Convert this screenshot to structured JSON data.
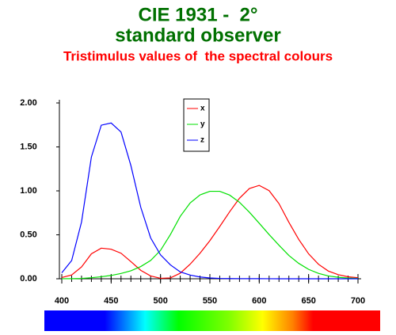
{
  "chart_data": {
    "type": "line",
    "title": [
      "CIE 1931 -  2°",
      "standard observer"
    ],
    "subtitle": "Tristimulus values of  the spectral colours",
    "x": [
      400,
      410,
      420,
      430,
      440,
      450,
      460,
      470,
      480,
      490,
      500,
      510,
      520,
      530,
      540,
      550,
      560,
      570,
      580,
      590,
      600,
      610,
      620,
      630,
      640,
      650,
      660,
      670,
      680,
      690,
      700
    ],
    "series": [
      {
        "name": "x",
        "color": "#ff0000",
        "values": [
          0.01431,
          0.04351,
          0.13438,
          0.2839,
          0.34828,
          0.3362,
          0.2908,
          0.19536,
          0.09564,
          0.03201,
          0.0049,
          0.0093,
          0.06327,
          0.1655,
          0.2904,
          0.43345,
          0.5945,
          0.7621,
          0.9163,
          1.0263,
          1.0622,
          1.0026,
          0.85445,
          0.6424,
          0.4479,
          0.2835,
          0.1649,
          0.0874,
          0.04677,
          0.0227,
          0.01136
        ]
      },
      {
        "name": "y",
        "color": "#00e000",
        "values": [
          0.0004,
          0.0012,
          0.004,
          0.0116,
          0.023,
          0.038,
          0.06,
          0.09098,
          0.13902,
          0.20802,
          0.323,
          0.503,
          0.71,
          0.862,
          0.954,
          0.99495,
          0.995,
          0.952,
          0.87,
          0.757,
          0.631,
          0.503,
          0.381,
          0.265,
          0.175,
          0.107,
          0.061,
          0.032,
          0.017,
          0.00821,
          0.0041
        ]
      },
      {
        "name": "z",
        "color": "#0000ff",
        "values": [
          0.06785,
          0.2074,
          0.6456,
          1.3856,
          1.74706,
          1.77211,
          1.6692,
          1.28764,
          0.81295,
          0.46518,
          0.272,
          0.1582,
          0.07825,
          0.04216,
          0.0203,
          0.00875,
          0.0039,
          0.0021,
          0.00165,
          0.0011,
          0.0008,
          0.00034,
          0.00019,
          5e-05,
          2e-05,
          0,
          0,
          0,
          0,
          0,
          0
        ]
      }
    ],
    "xlim": [
      400,
      700
    ],
    "xticks": [
      400,
      450,
      500,
      550,
      600,
      650,
      700
    ],
    "ylim": [
      0,
      2
    ],
    "yticks": [
      {
        "value": 0,
        "label": "0.00"
      },
      {
        "value": 0.5,
        "label": "0.50"
      },
      {
        "value": 1,
        "label": "1.00"
      },
      {
        "value": 1.5,
        "label": "1.50"
      },
      {
        "value": 2,
        "label": "2.00"
      }
    ],
    "legend": "top-center"
  }
}
